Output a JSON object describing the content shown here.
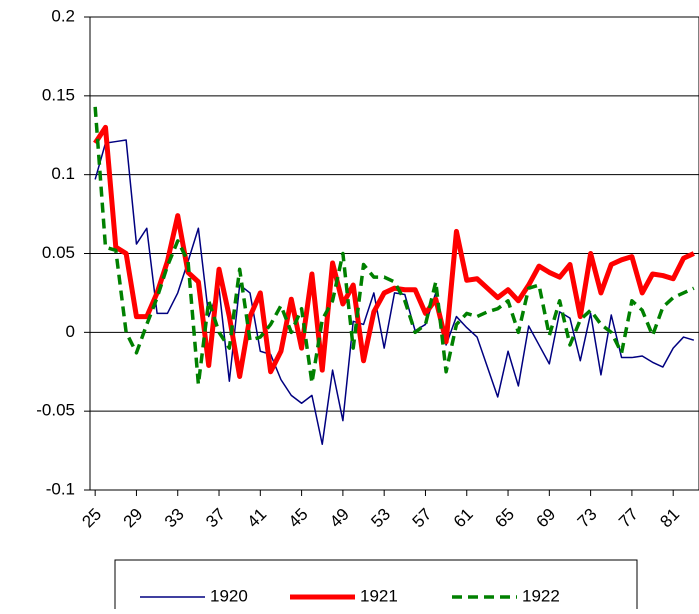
{
  "chart_data": {
    "type": "line",
    "x": [
      25,
      26,
      27,
      28,
      29,
      30,
      31,
      32,
      33,
      34,
      35,
      36,
      37,
      38,
      39,
      40,
      41,
      42,
      43,
      44,
      45,
      46,
      47,
      48,
      49,
      50,
      51,
      52,
      53,
      54,
      55,
      56,
      57,
      58,
      59,
      60,
      61,
      62,
      63,
      64,
      65,
      66,
      67,
      68,
      69,
      70,
      71,
      72,
      73,
      74,
      75,
      76,
      77,
      78,
      79,
      80,
      81,
      82,
      83
    ],
    "xlim": [
      24.5,
      83.5
    ],
    "xticks": [
      25,
      29,
      33,
      37,
      41,
      45,
      49,
      53,
      57,
      61,
      65,
      69,
      73,
      77,
      81
    ],
    "ylim": [
      -0.1,
      0.2
    ],
    "yticks": [
      -0.1,
      -0.05,
      0,
      0.05,
      0.1,
      0.15,
      0.2
    ],
    "grid": true,
    "legend": "bottom",
    "series": [
      {
        "name": "1920",
        "color": "#000080",
        "width": 1.5,
        "dash": "solid",
        "values": [
          0.097,
          0.12,
          0.121,
          0.122,
          0.056,
          0.066,
          0.012,
          0.012,
          0.025,
          0.045,
          0.066,
          0.01,
          0.028,
          -0.031,
          0.03,
          0.025,
          -0.012,
          -0.014,
          -0.03,
          -0.04,
          -0.045,
          -0.04,
          -0.071,
          -0.024,
          -0.056,
          0.007,
          0.005,
          0.025,
          -0.01,
          0.025,
          0.024,
          0.001,
          0.005,
          0.025,
          -0.008,
          0.01,
          0.003,
          -0.003,
          -0.022,
          -0.041,
          -0.012,
          -0.034,
          0.004,
          -0.008,
          -0.02,
          0.013,
          0.009,
          -0.018,
          0.012,
          -0.027,
          0.011,
          -0.016,
          -0.016,
          -0.015,
          -0.019,
          -0.022,
          -0.01,
          -0.003,
          -0.005
        ]
      },
      {
        "name": "1921",
        "color": "#ff0000",
        "width": 5,
        "dash": "solid",
        "values": [
          0.12,
          0.13,
          0.054,
          0.05,
          0.01,
          0.01,
          0.025,
          0.045,
          0.074,
          0.038,
          0.032,
          -0.021,
          0.04,
          0.01,
          -0.028,
          0.01,
          0.025,
          -0.025,
          -0.012,
          0.021,
          -0.01,
          0.037,
          -0.024,
          0.044,
          0.018,
          0.03,
          -0.018,
          0.013,
          0.025,
          0.028,
          0.027,
          0.027,
          0.012,
          0.021,
          -0.006,
          0.064,
          0.033,
          0.034,
          0.028,
          0.022,
          0.027,
          0.02,
          0.03,
          0.042,
          0.038,
          0.035,
          0.043,
          0.01,
          0.05,
          0.025,
          0.043,
          0.046,
          0.048,
          0.025,
          0.037,
          0.036,
          0.034,
          0.047,
          0.05
        ]
      },
      {
        "name": "1922",
        "color": "#008000",
        "width": 3.5,
        "dash": "dashed",
        "values": [
          0.143,
          0.054,
          0.052,
          0.0,
          -0.013,
          0.005,
          0.022,
          0.042,
          0.058,
          0.045,
          -0.033,
          0.02,
          0.0,
          -0.01,
          0.04,
          -0.005,
          -0.003,
          0.005,
          0.017,
          0.0,
          0.015,
          -0.032,
          0.008,
          0.02,
          0.05,
          -0.01,
          0.043,
          0.035,
          0.035,
          0.032,
          0.02,
          0.0,
          0.005,
          0.032,
          -0.025,
          0.005,
          0.012,
          0.01,
          0.013,
          0.015,
          0.02,
          0.0,
          0.028,
          0.03,
          -0.002,
          0.02,
          -0.008,
          0.008,
          0.014,
          0.005,
          0.0,
          -0.013,
          0.02,
          0.014,
          -0.002,
          0.016,
          0.022,
          0.025,
          0.028
        ]
      }
    ]
  }
}
